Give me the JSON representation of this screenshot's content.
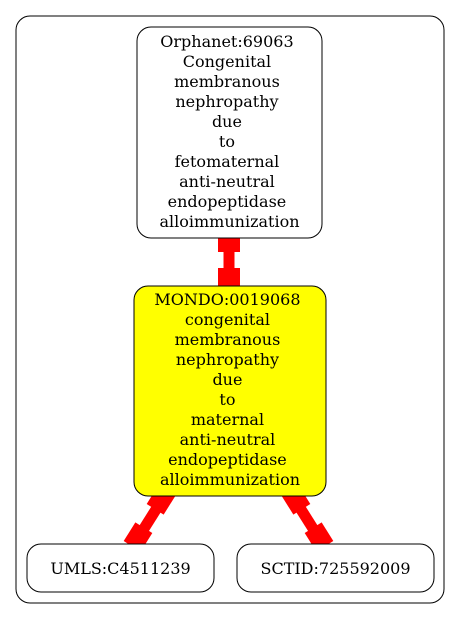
{
  "diagram": {
    "colors": {
      "edge": "#ff0000",
      "highlight_fill": "#ffff00",
      "node_fill": "#ffffff",
      "stroke": "#000000"
    },
    "nodes": {
      "orphanet": {
        "lines": [
          "Orphanet:69063",
          "Congenital",
          "membranous",
          "nephropathy",
          "due",
          "to",
          "fetomaternal",
          "anti-neutral",
          "endopeptidase",
          "alloimmunization"
        ]
      },
      "mondo": {
        "lines": [
          "MONDO:0019068",
          "congenital",
          "membranous",
          "nephropathy",
          "due",
          "to",
          "maternal",
          "anti-neutral",
          "endopeptidase",
          "alloimmunization"
        ]
      },
      "umls": {
        "lines": [
          "UMLS:C4511239"
        ]
      },
      "sctid": {
        "lines": [
          "SCTID:725592009"
        ]
      }
    }
  }
}
